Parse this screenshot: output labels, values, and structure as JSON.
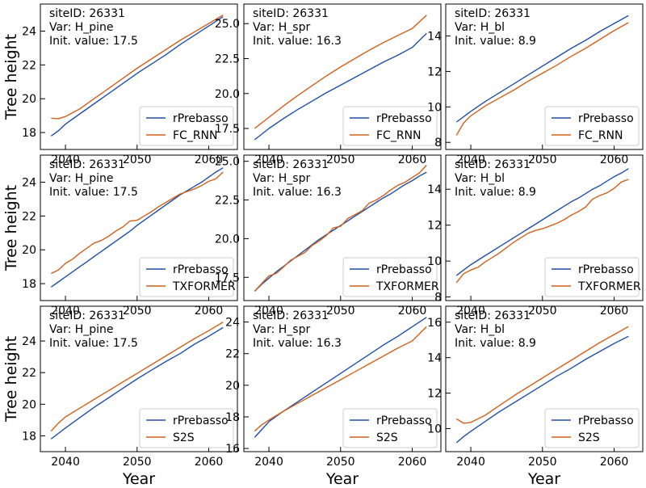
{
  "colors": {
    "rprebasso": "#1f4fa8",
    "model": "#d2601a"
  },
  "axis_titles": {
    "y": "Tree height",
    "x": "Year"
  },
  "annotation_labels": {
    "site": "siteID: ",
    "var": "Var: ",
    "init": "Init. value: "
  },
  "chart_data": [
    {
      "type": "line",
      "row": 0,
      "col": 0,
      "site_id": "26331",
      "var": "H_pine",
      "init_value": "17.5",
      "xlim": [
        2036.5,
        2064
      ],
      "ylim": [
        17.0,
        25.6
      ],
      "xticks": [
        2040,
        2050,
        2060
      ],
      "yticks": [
        18,
        20,
        22,
        24
      ],
      "ytick_labels": [
        "18",
        "20",
        "22",
        "24"
      ],
      "ylabel": "Tree height",
      "xlabel": "",
      "x": [
        2038,
        2039,
        2040,
        2042,
        2044,
        2046,
        2048,
        2050,
        2052,
        2054,
        2056,
        2058,
        2060,
        2062
      ],
      "series": [
        {
          "name": "rPrebasso",
          "values": [
            17.8,
            18.1,
            18.5,
            19.1,
            19.7,
            20.3,
            20.9,
            21.5,
            22.05,
            22.6,
            23.2,
            23.75,
            24.3,
            24.85
          ]
        },
        {
          "name": "FC_RNN",
          "values": [
            18.85,
            18.82,
            18.95,
            19.4,
            20.0,
            20.6,
            21.2,
            21.8,
            22.35,
            22.9,
            23.45,
            23.95,
            24.45,
            24.95
          ]
        }
      ]
    },
    {
      "type": "line",
      "row": 0,
      "col": 1,
      "site_id": "26331",
      "var": "H_spr",
      "init_value": "16.3",
      "xlim": [
        2036.5,
        2064
      ],
      "ylim": [
        16.0,
        26.4
      ],
      "xticks": [
        2040,
        2050,
        2060
      ],
      "yticks": [
        17.5,
        20.0,
        22.5,
        25.0
      ],
      "ytick_labels": [
        "17.5",
        "20.0",
        "22.5",
        "25.0"
      ],
      "ylabel": "",
      "xlabel": "",
      "x": [
        2038,
        2039,
        2040,
        2042,
        2044,
        2046,
        2048,
        2050,
        2052,
        2054,
        2056,
        2058,
        2060,
        2062
      ],
      "series": [
        {
          "name": "rPrebasso",
          "values": [
            16.7,
            17.1,
            17.5,
            18.2,
            18.85,
            19.45,
            20.05,
            20.6,
            21.15,
            21.7,
            22.25,
            22.75,
            23.3,
            24.3
          ]
        },
        {
          "name": "FC_RNN",
          "values": [
            17.5,
            17.9,
            18.3,
            19.1,
            19.85,
            20.55,
            21.25,
            21.9,
            22.5,
            23.1,
            23.65,
            24.15,
            24.65,
            25.6
          ]
        }
      ]
    },
    {
      "type": "line",
      "row": 0,
      "col": 2,
      "site_id": "26331",
      "var": "H_bl",
      "init_value": "8.9",
      "xlim": [
        2036.5,
        2064
      ],
      "ylim": [
        7.6,
        15.8
      ],
      "xticks": [
        2040,
        2050,
        2060
      ],
      "yticks": [
        8,
        10,
        12,
        14
      ],
      "ytick_labels": [
        "8",
        "10",
        "12",
        "14"
      ],
      "ylabel": "",
      "xlabel": "",
      "x": [
        2038,
        2039,
        2040,
        2042,
        2044,
        2046,
        2048,
        2050,
        2052,
        2054,
        2056,
        2058,
        2060,
        2062
      ],
      "series": [
        {
          "name": "rPrebasso",
          "values": [
            9.15,
            9.45,
            9.75,
            10.3,
            10.8,
            11.3,
            11.8,
            12.3,
            12.8,
            13.3,
            13.75,
            14.25,
            14.7,
            15.15
          ]
        },
        {
          "name": "FC_RNN",
          "values": [
            8.4,
            9.1,
            9.5,
            10.05,
            10.5,
            10.95,
            11.45,
            11.9,
            12.35,
            12.85,
            13.3,
            13.8,
            14.3,
            14.75
          ]
        }
      ]
    },
    {
      "type": "line",
      "row": 1,
      "col": 0,
      "site_id": "26331",
      "var": "H_pine",
      "init_value": "17.5",
      "xlim": [
        2036.5,
        2064
      ],
      "ylim": [
        17.0,
        25.6
      ],
      "xticks": [
        2040,
        2050,
        2060
      ],
      "yticks": [
        18,
        20,
        22,
        24
      ],
      "ytick_labels": [
        "18",
        "20",
        "22",
        "24"
      ],
      "ylabel": "Tree height",
      "xlabel": "",
      "x": [
        2038,
        2039,
        2040,
        2041,
        2042,
        2043,
        2044,
        2045,
        2046,
        2047,
        2048,
        2049,
        2050,
        2051,
        2052,
        2053,
        2054,
        2055,
        2056,
        2057,
        2058,
        2059,
        2060,
        2061,
        2062
      ],
      "series": [
        {
          "name": "rPrebasso",
          "values": [
            17.8,
            18.1,
            18.4,
            18.7,
            19.0,
            19.3,
            19.6,
            19.9,
            20.2,
            20.5,
            20.8,
            21.1,
            21.45,
            21.75,
            22.05,
            22.35,
            22.65,
            22.95,
            23.25,
            23.5,
            23.75,
            24.0,
            24.3,
            24.6,
            24.85
          ]
        },
        {
          "name": "TXFORMER",
          "values": [
            18.6,
            18.8,
            19.2,
            19.45,
            19.8,
            20.1,
            20.4,
            20.55,
            20.8,
            21.1,
            21.35,
            21.7,
            21.75,
            22.0,
            22.25,
            22.55,
            22.8,
            23.05,
            23.3,
            23.45,
            23.6,
            23.8,
            24.05,
            24.2,
            24.6
          ]
        }
      ]
    },
    {
      "type": "line",
      "row": 1,
      "col": 1,
      "site_id": "26331",
      "var": "H_spr",
      "init_value": "16.3",
      "xlim": [
        2036.5,
        2064
      ],
      "ylim": [
        16.0,
        25.4
      ],
      "xticks": [
        2040,
        2050,
        2060
      ],
      "yticks": [
        17.5,
        20.0,
        22.5,
        25.0
      ],
      "ytick_labels": [
        "17.5",
        "20.0",
        "22.5",
        "25.0"
      ],
      "ylabel": "",
      "xlabel": "",
      "x": [
        2038,
        2039,
        2040,
        2041,
        2042,
        2043,
        2044,
        2045,
        2046,
        2047,
        2048,
        2049,
        2050,
        2051,
        2052,
        2053,
        2054,
        2055,
        2056,
        2057,
        2058,
        2059,
        2060,
        2061,
        2062
      ],
      "series": [
        {
          "name": "rPrebasso",
          "values": [
            16.6,
            17.05,
            17.45,
            17.85,
            18.2,
            18.55,
            18.9,
            19.25,
            19.6,
            19.95,
            20.25,
            20.55,
            20.85,
            21.15,
            21.45,
            21.75,
            22.05,
            22.35,
            22.65,
            22.9,
            23.2,
            23.5,
            23.75,
            24.05,
            24.3
          ]
        },
        {
          "name": "TXFORMER",
          "values": [
            16.6,
            17.1,
            17.6,
            17.75,
            18.15,
            18.6,
            18.85,
            19.1,
            19.55,
            19.85,
            20.2,
            20.7,
            20.8,
            21.3,
            21.55,
            21.8,
            22.3,
            22.5,
            22.8,
            23.15,
            23.45,
            23.65,
            23.95,
            24.25,
            24.75
          ]
        }
      ]
    },
    {
      "type": "line",
      "row": 1,
      "col": 2,
      "site_id": "26331",
      "var": "H_bl",
      "init_value": "8.9",
      "xlim": [
        2036.5,
        2064
      ],
      "ylim": [
        7.8,
        15.9
      ],
      "xticks": [
        2040,
        2050,
        2060
      ],
      "yticks": [
        8,
        10,
        12,
        14
      ],
      "ytick_labels": [
        "8",
        "10",
        "12",
        "14"
      ],
      "ylabel": "",
      "xlabel": "",
      "x": [
        2038,
        2039,
        2040,
        2041,
        2042,
        2043,
        2044,
        2045,
        2046,
        2047,
        2048,
        2049,
        2050,
        2051,
        2052,
        2053,
        2054,
        2055,
        2056,
        2057,
        2058,
        2059,
        2060,
        2061,
        2062
      ],
      "series": [
        {
          "name": "rPrebasso",
          "values": [
            9.2,
            9.5,
            9.8,
            10.05,
            10.3,
            10.55,
            10.8,
            11.05,
            11.3,
            11.55,
            11.8,
            12.05,
            12.3,
            12.55,
            12.8,
            13.05,
            13.3,
            13.5,
            13.75,
            14.0,
            14.2,
            14.45,
            14.7,
            14.9,
            15.15
          ]
        },
        {
          "name": "TXFORMER",
          "values": [
            8.8,
            9.3,
            9.5,
            9.65,
            9.95,
            10.2,
            10.45,
            10.75,
            11.05,
            11.3,
            11.55,
            11.7,
            11.8,
            11.95,
            12.1,
            12.3,
            12.55,
            12.75,
            13.0,
            13.45,
            13.65,
            13.8,
            14.05,
            14.4,
            14.55
          ]
        }
      ]
    },
    {
      "type": "line",
      "row": 2,
      "col": 0,
      "site_id": "26331",
      "var": "H_pine",
      "init_value": "17.5",
      "xlim": [
        2036.5,
        2064
      ],
      "ylim": [
        17.0,
        26.2
      ],
      "xticks": [
        2040,
        2050,
        2060
      ],
      "yticks": [
        18,
        20,
        22,
        24
      ],
      "ytick_labels": [
        "18",
        "20",
        "22",
        "24"
      ],
      "ylabel": "Tree height",
      "xlabel": "Year",
      "x": [
        2038,
        2039,
        2040,
        2042,
        2044,
        2046,
        2048,
        2050,
        2052,
        2054,
        2056,
        2058,
        2060,
        2062
      ],
      "series": [
        {
          "name": "rPrebasso",
          "values": [
            17.8,
            18.15,
            18.5,
            19.15,
            19.8,
            20.4,
            21.0,
            21.6,
            22.15,
            22.7,
            23.2,
            23.8,
            24.3,
            24.85
          ]
        },
        {
          "name": "S2S",
          "values": [
            18.3,
            18.8,
            19.2,
            19.75,
            20.3,
            20.85,
            21.4,
            21.95,
            22.5,
            23.05,
            23.6,
            24.15,
            24.65,
            25.2
          ]
        }
      ]
    },
    {
      "type": "line",
      "row": 2,
      "col": 1,
      "site_id": "26331",
      "var": "H_spr",
      "init_value": "16.3",
      "xlim": [
        2036.5,
        2064
      ],
      "ylim": [
        15.8,
        25.0
      ],
      "xticks": [
        2040,
        2050,
        2060
      ],
      "yticks": [
        16,
        18,
        20,
        22,
        24
      ],
      "ytick_labels": [
        "16",
        "18",
        "20",
        "22",
        "24"
      ],
      "ylabel": "",
      "xlabel": "Year",
      "x": [
        2038,
        2039,
        2040,
        2042,
        2044,
        2046,
        2048,
        2050,
        2052,
        2054,
        2056,
        2058,
        2060,
        2062
      ],
      "series": [
        {
          "name": "rPrebasso",
          "values": [
            16.7,
            17.2,
            17.7,
            18.35,
            18.95,
            19.55,
            20.15,
            20.75,
            21.35,
            21.95,
            22.55,
            23.1,
            23.7,
            24.3
          ]
        },
        {
          "name": "S2S",
          "values": [
            17.1,
            17.5,
            17.8,
            18.35,
            18.85,
            19.35,
            19.85,
            20.35,
            20.85,
            21.35,
            21.85,
            22.35,
            22.8,
            23.7
          ]
        }
      ]
    },
    {
      "type": "line",
      "row": 2,
      "col": 2,
      "site_id": "26331",
      "var": "H_bl",
      "init_value": "8.9",
      "xlim": [
        2036.5,
        2064
      ],
      "ylim": [
        8.7,
        16.9
      ],
      "xticks": [
        2040,
        2050,
        2060
      ],
      "yticks": [
        10,
        12,
        14,
        16
      ],
      "ytick_labels": [
        "10",
        "12",
        "14",
        "16"
      ],
      "ylabel": "",
      "xlabel": "Year",
      "x": [
        2038,
        2039,
        2040,
        2042,
        2044,
        2046,
        2048,
        2050,
        2052,
        2054,
        2056,
        2058,
        2060,
        2062
      ],
      "series": [
        {
          "name": "rPrebasso",
          "values": [
            9.2,
            9.55,
            9.85,
            10.4,
            10.95,
            11.45,
            11.95,
            12.45,
            12.95,
            13.4,
            13.9,
            14.35,
            14.8,
            15.2
          ]
        },
        {
          "name": "S2S",
          "values": [
            10.55,
            10.3,
            10.35,
            10.75,
            11.3,
            11.85,
            12.35,
            12.85,
            13.35,
            13.85,
            14.35,
            14.85,
            15.3,
            15.75
          ]
        }
      ]
    }
  ]
}
